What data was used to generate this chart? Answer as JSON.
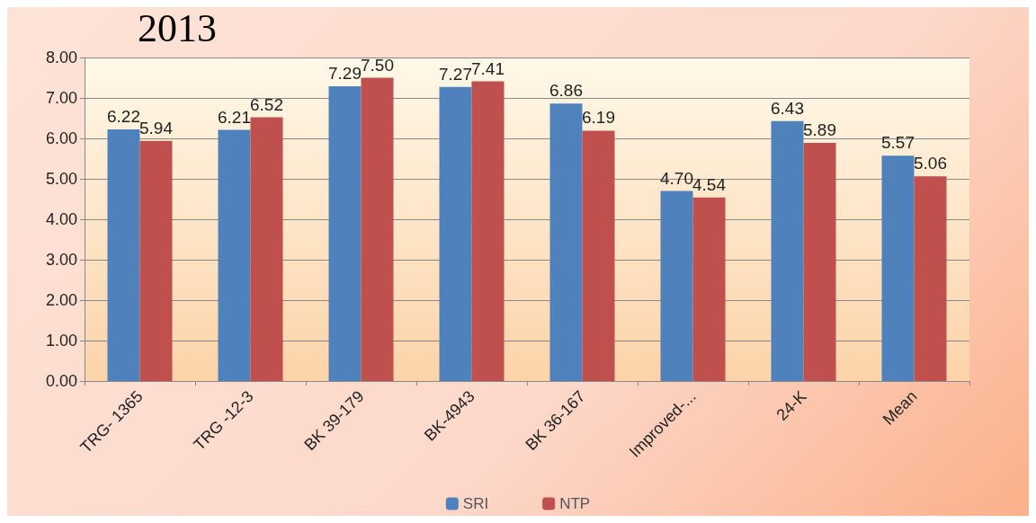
{
  "chart_data": {
    "type": "bar",
    "title": "2013",
    "categories": [
      "TRG- 1365",
      "TRG -12-3",
      "BK 39-179",
      "BK-4943",
      "BK 36-167",
      "Improved-...",
      "24-K",
      "Mean"
    ],
    "series": [
      {
        "name": "SRI",
        "color": "#4f81bd",
        "values": [
          6.22,
          6.21,
          7.29,
          7.27,
          6.86,
          4.7,
          6.43,
          5.57
        ],
        "value_labels": [
          "6.22",
          "6.21",
          "7.29",
          "7.27",
          "6.86",
          "4.70",
          "6.43",
          "5.57"
        ]
      },
      {
        "name": "NTP",
        "color": "#c0504d",
        "values": [
          5.94,
          6.52,
          7.5,
          7.41,
          6.19,
          4.54,
          5.89,
          5.06
        ],
        "value_labels": [
          "5.94",
          "6.52",
          "7.50",
          "7.41",
          "6.19",
          "4.54",
          "5.89",
          "5.06"
        ]
      }
    ],
    "ylim": [
      0,
      8
    ],
    "yticks": [
      {
        "value": 0,
        "label": "0.00"
      },
      {
        "value": 1,
        "label": "1.00"
      },
      {
        "value": 2,
        "label": "2.00"
      },
      {
        "value": 3,
        "label": "3.00"
      },
      {
        "value": 4,
        "label": "4.00"
      },
      {
        "value": 5,
        "label": "5.00"
      },
      {
        "value": 6,
        "label": "6.00"
      },
      {
        "value": 7,
        "label": "7.00"
      },
      {
        "value": 8,
        "label": "8.00"
      }
    ],
    "grid": "y",
    "legend": "bottom"
  }
}
